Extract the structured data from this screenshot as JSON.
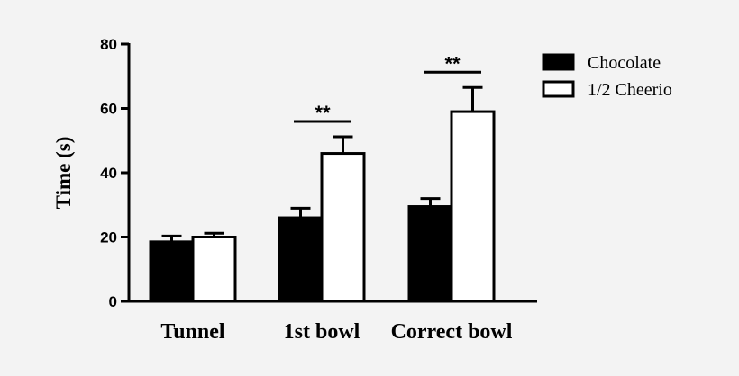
{
  "chart_data": {
    "type": "bar",
    "categories": [
      "Tunnel",
      "1st bowl",
      "Correct bowl"
    ],
    "series": [
      {
        "name": "Chocolate",
        "values": [
          18.5,
          26.0,
          29.5
        ],
        "errors": [
          1.8,
          3.0,
          2.5
        ],
        "fill": "#000000"
      },
      {
        "name": "1/2 Cheerio",
        "values": [
          20.0,
          46.0,
          59.0
        ],
        "errors": [
          1.2,
          5.2,
          7.5
        ],
        "fill": "#ffffff"
      }
    ],
    "ylabel": "Time (s)",
    "ylim": [
      0,
      80
    ],
    "yticks": [
      0,
      20,
      40,
      60,
      80
    ],
    "grid": false,
    "legend_position": "top-right",
    "annotations": [
      {
        "category": "1st bowl",
        "text": "**"
      },
      {
        "category": "Correct bowl",
        "text": "**"
      }
    ]
  }
}
